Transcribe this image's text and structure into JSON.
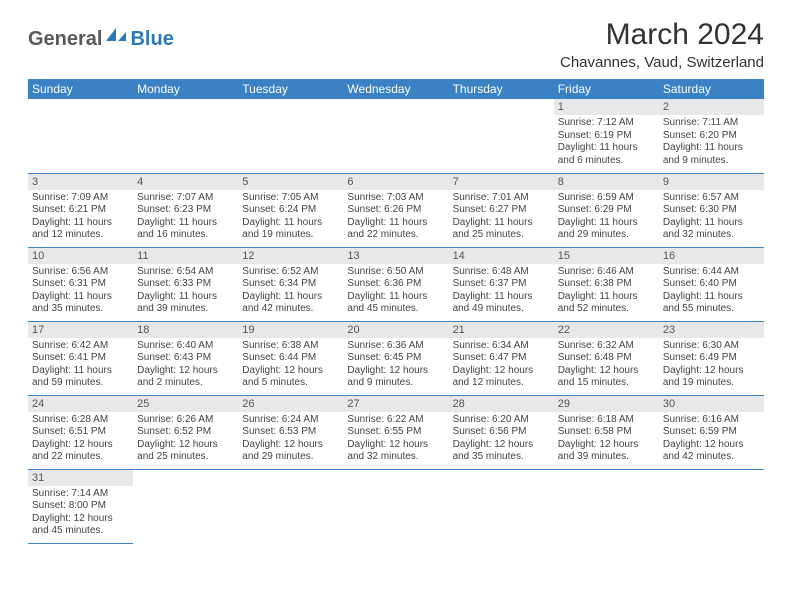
{
  "logo": {
    "part1": "General",
    "part2": "Blue"
  },
  "title": "March 2024",
  "location": "Chavannes, Vaud, Switzerland",
  "colors": {
    "header_bg": "#3a82c4",
    "header_text": "#ffffff",
    "daynum_bg": "#e8e8e8",
    "cell_border": "#3a82c4",
    "logo_gray": "#5a5a5a",
    "logo_blue": "#2f78b8"
  },
  "day_headers": [
    "Sunday",
    "Monday",
    "Tuesday",
    "Wednesday",
    "Thursday",
    "Friday",
    "Saturday"
  ],
  "cells": [
    {
      "blank": true
    },
    {
      "blank": true
    },
    {
      "blank": true
    },
    {
      "blank": true
    },
    {
      "blank": true
    },
    {
      "num": "1",
      "sunrise": "Sunrise: 7:12 AM",
      "sunset": "Sunset: 6:19 PM",
      "daylight": "Daylight: 11 hours and 6 minutes."
    },
    {
      "num": "2",
      "sunrise": "Sunrise: 7:11 AM",
      "sunset": "Sunset: 6:20 PM",
      "daylight": "Daylight: 11 hours and 9 minutes."
    },
    {
      "num": "3",
      "sunrise": "Sunrise: 7:09 AM",
      "sunset": "Sunset: 6:21 PM",
      "daylight": "Daylight: 11 hours and 12 minutes."
    },
    {
      "num": "4",
      "sunrise": "Sunrise: 7:07 AM",
      "sunset": "Sunset: 6:23 PM",
      "daylight": "Daylight: 11 hours and 16 minutes."
    },
    {
      "num": "5",
      "sunrise": "Sunrise: 7:05 AM",
      "sunset": "Sunset: 6:24 PM",
      "daylight": "Daylight: 11 hours and 19 minutes."
    },
    {
      "num": "6",
      "sunrise": "Sunrise: 7:03 AM",
      "sunset": "Sunset: 6:26 PM",
      "daylight": "Daylight: 11 hours and 22 minutes."
    },
    {
      "num": "7",
      "sunrise": "Sunrise: 7:01 AM",
      "sunset": "Sunset: 6:27 PM",
      "daylight": "Daylight: 11 hours and 25 minutes."
    },
    {
      "num": "8",
      "sunrise": "Sunrise: 6:59 AM",
      "sunset": "Sunset: 6:29 PM",
      "daylight": "Daylight: 11 hours and 29 minutes."
    },
    {
      "num": "9",
      "sunrise": "Sunrise: 6:57 AM",
      "sunset": "Sunset: 6:30 PM",
      "daylight": "Daylight: 11 hours and 32 minutes."
    },
    {
      "num": "10",
      "sunrise": "Sunrise: 6:56 AM",
      "sunset": "Sunset: 6:31 PM",
      "daylight": "Daylight: 11 hours and 35 minutes."
    },
    {
      "num": "11",
      "sunrise": "Sunrise: 6:54 AM",
      "sunset": "Sunset: 6:33 PM",
      "daylight": "Daylight: 11 hours and 39 minutes."
    },
    {
      "num": "12",
      "sunrise": "Sunrise: 6:52 AM",
      "sunset": "Sunset: 6:34 PM",
      "daylight": "Daylight: 11 hours and 42 minutes."
    },
    {
      "num": "13",
      "sunrise": "Sunrise: 6:50 AM",
      "sunset": "Sunset: 6:36 PM",
      "daylight": "Daylight: 11 hours and 45 minutes."
    },
    {
      "num": "14",
      "sunrise": "Sunrise: 6:48 AM",
      "sunset": "Sunset: 6:37 PM",
      "daylight": "Daylight: 11 hours and 49 minutes."
    },
    {
      "num": "15",
      "sunrise": "Sunrise: 6:46 AM",
      "sunset": "Sunset: 6:38 PM",
      "daylight": "Daylight: 11 hours and 52 minutes."
    },
    {
      "num": "16",
      "sunrise": "Sunrise: 6:44 AM",
      "sunset": "Sunset: 6:40 PM",
      "daylight": "Daylight: 11 hours and 55 minutes."
    },
    {
      "num": "17",
      "sunrise": "Sunrise: 6:42 AM",
      "sunset": "Sunset: 6:41 PM",
      "daylight": "Daylight: 11 hours and 59 minutes."
    },
    {
      "num": "18",
      "sunrise": "Sunrise: 6:40 AM",
      "sunset": "Sunset: 6:43 PM",
      "daylight": "Daylight: 12 hours and 2 minutes."
    },
    {
      "num": "19",
      "sunrise": "Sunrise: 6:38 AM",
      "sunset": "Sunset: 6:44 PM",
      "daylight": "Daylight: 12 hours and 5 minutes."
    },
    {
      "num": "20",
      "sunrise": "Sunrise: 6:36 AM",
      "sunset": "Sunset: 6:45 PM",
      "daylight": "Daylight: 12 hours and 9 minutes."
    },
    {
      "num": "21",
      "sunrise": "Sunrise: 6:34 AM",
      "sunset": "Sunset: 6:47 PM",
      "daylight": "Daylight: 12 hours and 12 minutes."
    },
    {
      "num": "22",
      "sunrise": "Sunrise: 6:32 AM",
      "sunset": "Sunset: 6:48 PM",
      "daylight": "Daylight: 12 hours and 15 minutes."
    },
    {
      "num": "23",
      "sunrise": "Sunrise: 6:30 AM",
      "sunset": "Sunset: 6:49 PM",
      "daylight": "Daylight: 12 hours and 19 minutes."
    },
    {
      "num": "24",
      "sunrise": "Sunrise: 6:28 AM",
      "sunset": "Sunset: 6:51 PM",
      "daylight": "Daylight: 12 hours and 22 minutes."
    },
    {
      "num": "25",
      "sunrise": "Sunrise: 6:26 AM",
      "sunset": "Sunset: 6:52 PM",
      "daylight": "Daylight: 12 hours and 25 minutes."
    },
    {
      "num": "26",
      "sunrise": "Sunrise: 6:24 AM",
      "sunset": "Sunset: 6:53 PM",
      "daylight": "Daylight: 12 hours and 29 minutes."
    },
    {
      "num": "27",
      "sunrise": "Sunrise: 6:22 AM",
      "sunset": "Sunset: 6:55 PM",
      "daylight": "Daylight: 12 hours and 32 minutes."
    },
    {
      "num": "28",
      "sunrise": "Sunrise: 6:20 AM",
      "sunset": "Sunset: 6:56 PM",
      "daylight": "Daylight: 12 hours and 35 minutes."
    },
    {
      "num": "29",
      "sunrise": "Sunrise: 6:18 AM",
      "sunset": "Sunset: 6:58 PM",
      "daylight": "Daylight: 12 hours and 39 minutes."
    },
    {
      "num": "30",
      "sunrise": "Sunrise: 6:16 AM",
      "sunset": "Sunset: 6:59 PM",
      "daylight": "Daylight: 12 hours and 42 minutes."
    },
    {
      "num": "31",
      "sunrise": "Sunrise: 7:14 AM",
      "sunset": "Sunset: 8:00 PM",
      "daylight": "Daylight: 12 hours and 45 minutes."
    },
    {
      "trailing": true
    },
    {
      "trailing": true
    },
    {
      "trailing": true
    },
    {
      "trailing": true
    },
    {
      "trailing": true
    },
    {
      "trailing": true
    }
  ]
}
